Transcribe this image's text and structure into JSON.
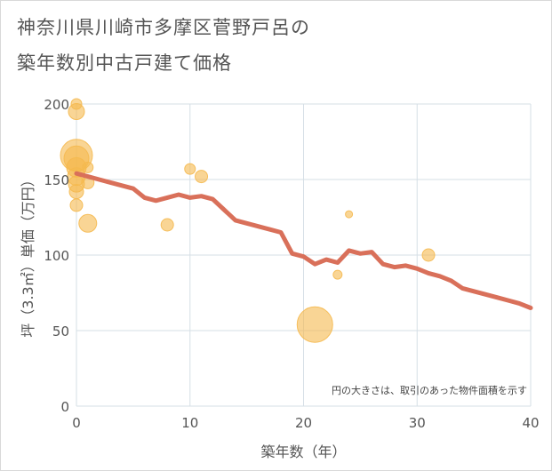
{
  "title_line1": "神奈川県川崎市多摩区菅野戸呂の",
  "title_line2": "築年数別中古戸建て価格",
  "chart_data": {
    "type": "scatter",
    "title": "神奈川県川崎市多摩区菅野戸呂の築年数別中古戸建て価格",
    "xlabel": "築年数（年）",
    "ylabel": "坪（3.3㎡）単価（万円）",
    "xlim": [
      0,
      40
    ],
    "ylim": [
      0,
      200
    ],
    "xticks": [
      0,
      10,
      20,
      30,
      40
    ],
    "yticks": [
      0,
      50,
      100,
      150,
      200
    ],
    "grid": true,
    "note": "円の大きさは、取引のあった物件面積を示す",
    "colors": {
      "bubble": "#f5b94f",
      "line": "#d9705a",
      "grid": "#d6dfe6",
      "background": "#ffffff"
    },
    "bubbles": [
      {
        "x": 0,
        "y": 200,
        "size": 6
      },
      {
        "x": 0,
        "y": 195,
        "size": 9
      },
      {
        "x": 0,
        "y": 166,
        "size": 18
      },
      {
        "x": 0,
        "y": 164,
        "size": 14
      },
      {
        "x": 0,
        "y": 158,
        "size": 11
      },
      {
        "x": 0,
        "y": 152,
        "size": 10
      },
      {
        "x": 0,
        "y": 147,
        "size": 9
      },
      {
        "x": 0,
        "y": 142,
        "size": 8
      },
      {
        "x": 0,
        "y": 133,
        "size": 7
      },
      {
        "x": 1,
        "y": 158,
        "size": 6
      },
      {
        "x": 1,
        "y": 148,
        "size": 7
      },
      {
        "x": 1,
        "y": 121,
        "size": 10
      },
      {
        "x": 8,
        "y": 120,
        "size": 7
      },
      {
        "x": 10,
        "y": 157,
        "size": 6
      },
      {
        "x": 11,
        "y": 152,
        "size": 7
      },
      {
        "x": 21,
        "y": 54,
        "size": 20
      },
      {
        "x": 23,
        "y": 87,
        "size": 5
      },
      {
        "x": 24,
        "y": 127,
        "size": 4
      },
      {
        "x": 31,
        "y": 100,
        "size": 7
      }
    ],
    "trend": {
      "x": [
        0,
        1,
        2,
        3,
        4,
        5,
        6,
        7,
        8,
        9,
        10,
        11,
        12,
        13,
        14,
        15,
        16,
        17,
        18,
        19,
        20,
        21,
        22,
        23,
        24,
        25,
        26,
        27,
        28,
        29,
        30,
        31,
        32,
        33,
        34,
        35,
        36,
        37,
        38,
        39,
        40
      ],
      "y": [
        154,
        152,
        150,
        148,
        146,
        144,
        138,
        136,
        138,
        140,
        138,
        139,
        137,
        130,
        123,
        121,
        119,
        117,
        115,
        101,
        99,
        94,
        97,
        95,
        103,
        101,
        102,
        94,
        92,
        93,
        91,
        88,
        86,
        83,
        78,
        76,
        74,
        72,
        70,
        68,
        65
      ]
    }
  }
}
